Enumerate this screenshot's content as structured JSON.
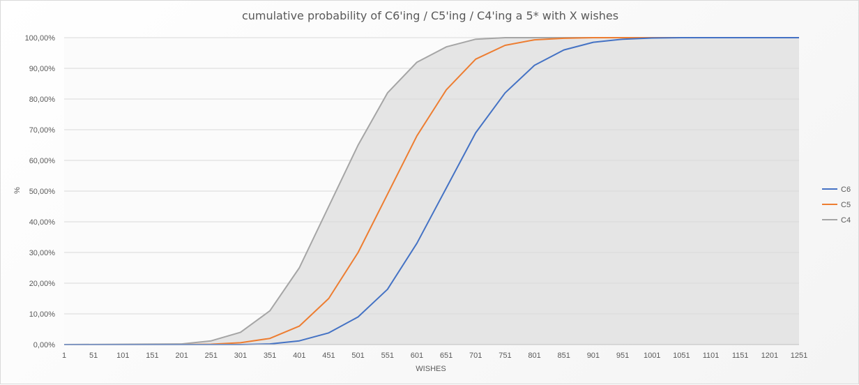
{
  "chart_data": {
    "type": "area",
    "title": "cumulative probability of C6'ing / C5'ing / C4'ing a 5* with X wishes",
    "xlabel": "WISHES",
    "ylabel": "%",
    "xlim": [
      1,
      1251
    ],
    "ylim": [
      0,
      1
    ],
    "grid": true,
    "legend": "right",
    "x_ticks": [
      "1",
      "51",
      "101",
      "151",
      "201",
      "251",
      "301",
      "351",
      "401",
      "451",
      "501",
      "551",
      "601",
      "651",
      "701",
      "751",
      "801",
      "851",
      "901",
      "951",
      "1001",
      "1051",
      "1101",
      "1151",
      "1201",
      "1251"
    ],
    "y_ticks": [
      "0,00%",
      "10,00%",
      "20,00%",
      "30,00%",
      "40,00%",
      "50,00%",
      "60,00%",
      "70,00%",
      "80,00%",
      "90,00%",
      "100,00%"
    ],
    "x": [
      1,
      201,
      251,
      301,
      351,
      401,
      451,
      501,
      551,
      601,
      651,
      701,
      751,
      801,
      851,
      901,
      951,
      1001,
      1051,
      1101,
      1151,
      1201,
      1251
    ],
    "series": [
      {
        "name": "C6",
        "color": "#4472c4",
        "fill": "#d6d6d6",
        "values": [
          0,
          0,
          0,
          0,
          0.002,
          0.012,
          0.038,
          0.09,
          0.18,
          0.33,
          0.51,
          0.69,
          0.82,
          0.91,
          0.96,
          0.985,
          0.995,
          0.999,
          1,
          1,
          1,
          1,
          1
        ]
      },
      {
        "name": "C5",
        "color": "#ed7d31",
        "fill": "#dcdcdc",
        "values": [
          0,
          0,
          0.001,
          0.006,
          0.02,
          0.06,
          0.15,
          0.3,
          0.49,
          0.68,
          0.83,
          0.93,
          0.975,
          0.993,
          0.998,
          1,
          1,
          1,
          1,
          1,
          1,
          1,
          1
        ]
      },
      {
        "name": "C4",
        "color": "#a5a5a5",
        "fill": "#e5e5e5",
        "values": [
          0,
          0.002,
          0.012,
          0.04,
          0.11,
          0.25,
          0.45,
          0.65,
          0.82,
          0.92,
          0.97,
          0.995,
          1,
          1,
          1,
          1,
          1,
          1,
          1,
          1,
          1,
          1,
          1
        ]
      }
    ]
  }
}
